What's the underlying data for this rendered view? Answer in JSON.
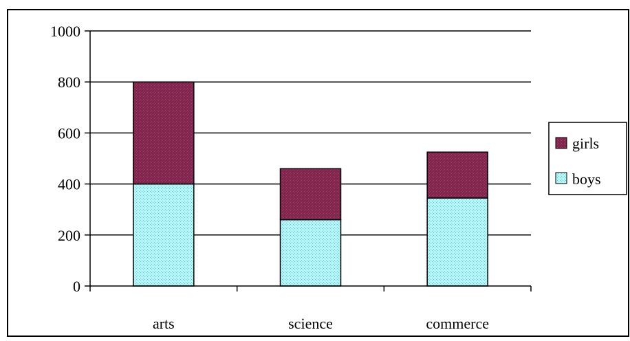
{
  "chart_data": {
    "type": "bar",
    "stacked": true,
    "categories": [
      "arts",
      "science",
      "commerce"
    ],
    "series": [
      {
        "name": "boys",
        "values": [
          400,
          260,
          345
        ]
      },
      {
        "name": "girls",
        "values": [
          400,
          200,
          180
        ]
      }
    ],
    "ylim": [
      0,
      1000
    ],
    "yticks": [
      "0",
      "200",
      "400",
      "600",
      "800",
      "1000"
    ],
    "grid": true,
    "legend": [
      "girls",
      "boys"
    ],
    "legend_position": "right",
    "title": "",
    "xlabel": "",
    "ylabel": ""
  },
  "colors": {
    "boys": "#b8f4f4",
    "boys_dot": "#4fd0e6",
    "girls": "#8e2244",
    "girls_dot": "#4a5fb0"
  }
}
